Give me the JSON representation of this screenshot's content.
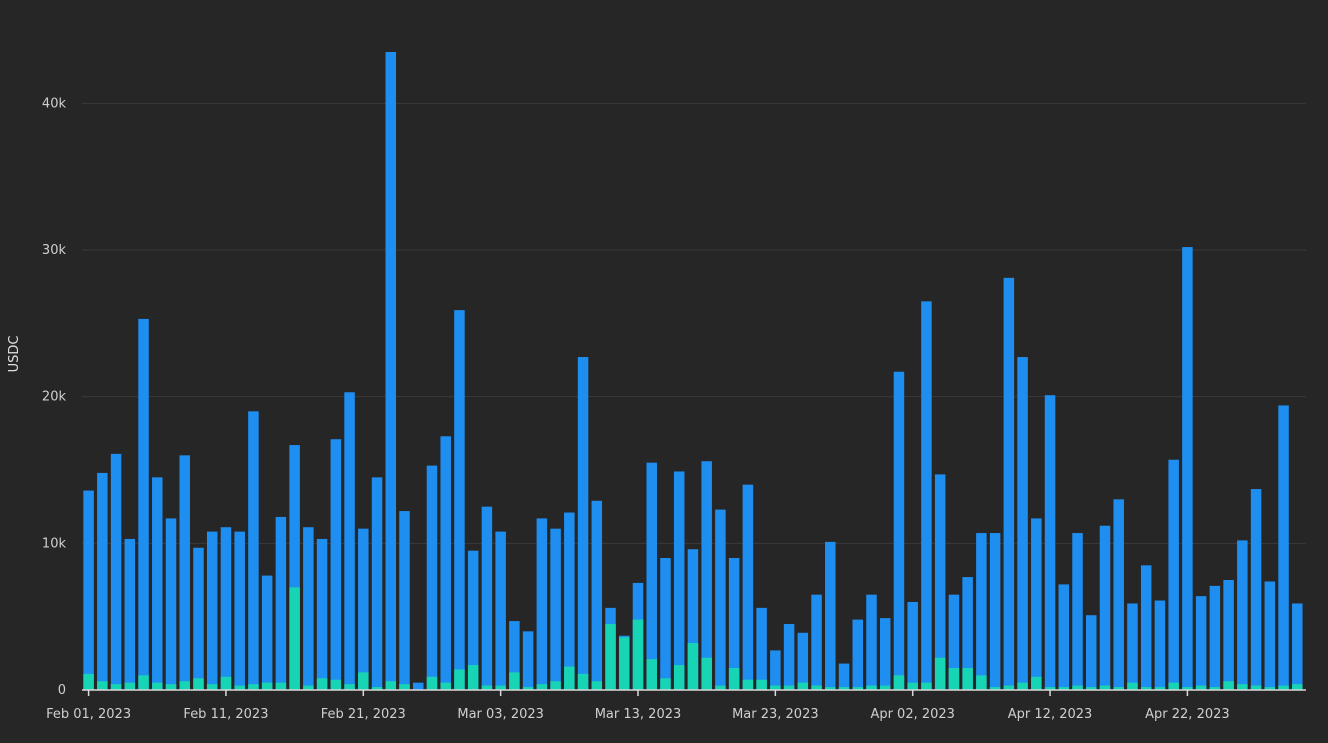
{
  "colors": {
    "background": "#262626",
    "grid": "#3a3a3a",
    "axis": "#d9d9d9",
    "text": "#cfcfcf",
    "series_total": "#1f8ef1",
    "series_sub": "#17d4b4"
  },
  "chart_data": {
    "type": "bar",
    "stacked": true,
    "ylabel": "USDC",
    "ylim": [
      0,
      45000
    ],
    "yticks": [
      0,
      10000,
      20000,
      30000,
      40000
    ],
    "ytick_labels": [
      "0",
      "10k",
      "20k",
      "30k",
      "40k"
    ],
    "x_start": "2023-02-01",
    "x_tick_labels": [
      "Feb 01, 2023",
      "Feb 11, 2023",
      "Feb 21, 2023",
      "Mar 03, 2023",
      "Mar 13, 2023",
      "Mar 23, 2023",
      "Apr 02, 2023",
      "Apr 12, 2023",
      "Apr 22, 2023"
    ],
    "x_tick_dates": [
      "2023-02-01",
      "2023-02-11",
      "2023-02-21",
      "2023-03-03",
      "2023-03-13",
      "2023-03-23",
      "2023-04-02",
      "2023-04-12",
      "2023-04-22"
    ],
    "grid": true,
    "series": [
      {
        "values": [
          13600,
          14800,
          16100,
          10300,
          25300,
          14500,
          11700,
          16000,
          9700,
          10800,
          11100,
          10800,
          19000,
          7800,
          11800,
          16700,
          11100,
          10300,
          17100,
          20300,
          11000,
          14500,
          43500,
          12200,
          500,
          15300,
          17300,
          25900,
          9500,
          12500,
          10800,
          4700,
          4000,
          11700,
          11000,
          12100,
          22700,
          12900,
          5600,
          3700,
          7300,
          15500,
          9000,
          14900,
          9600,
          15600,
          12300,
          9000,
          14000,
          5600,
          2700,
          4500,
          3900,
          6500,
          10100,
          1800,
          4800,
          6500,
          4900,
          21700,
          6000,
          26500,
          14700,
          6500,
          7700,
          10700,
          10700,
          28100,
          22700,
          11700,
          20100,
          7200,
          10700,
          5100,
          11200,
          13000,
          5900,
          8500,
          6100,
          15700,
          30200,
          6400,
          7100,
          7500,
          10200,
          13700,
          7400,
          19400,
          5900
        ]
      },
      {
        "values": [
          1100,
          600,
          400,
          500,
          1000,
          500,
          400,
          600,
          800,
          400,
          900,
          300,
          400,
          500,
          500,
          7000,
          300,
          800,
          700,
          400,
          1200,
          200,
          600,
          400,
          0,
          900,
          500,
          1400,
          1700,
          300,
          300,
          1200,
          200,
          400,
          600,
          1600,
          1100,
          600,
          4500,
          3600,
          4800,
          2100,
          800,
          1700,
          3200,
          2200,
          300,
          1500,
          700,
          700,
          300,
          300,
          500,
          300,
          200,
          200,
          200,
          300,
          300,
          1000,
          500,
          500,
          2200,
          1500,
          1500,
          1000,
          200,
          300,
          500,
          900,
          200,
          200,
          300,
          200,
          300,
          200,
          500,
          200,
          200,
          500,
          200,
          300,
          200,
          600,
          400,
          300,
          200,
          300,
          400
        ]
      }
    ]
  }
}
